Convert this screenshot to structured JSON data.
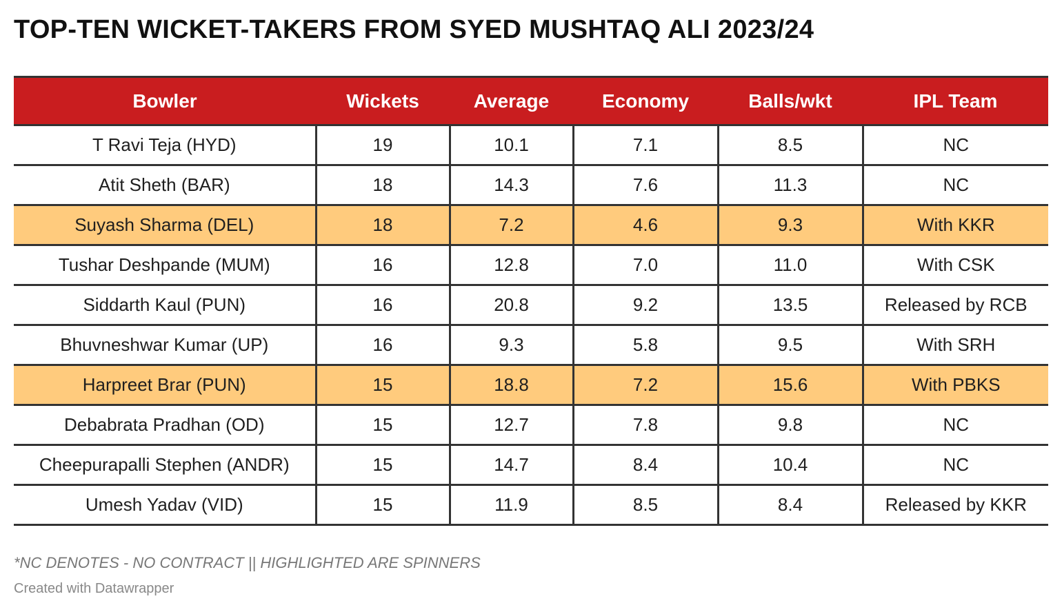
{
  "title": "TOP-TEN WICKET-TAKERS FROM SYED MUSHTAQ ALI 2023/24",
  "chart_data": {
    "type": "table",
    "title": "TOP-TEN WICKET-TAKERS FROM SYED MUSHTAQ ALI 2023/24",
    "columns": [
      "Bowler",
      "Wickets",
      "Average",
      "Economy",
      "Balls/wkt",
      "IPL Team"
    ],
    "rows": [
      {
        "bowler": "T Ravi Teja (HYD)",
        "wickets": "19",
        "average": "10.1",
        "economy": "7.1",
        "balls_per_wkt": "8.5",
        "ipl_team": "NC",
        "highlighted": false
      },
      {
        "bowler": "Atit Sheth (BAR)",
        "wickets": "18",
        "average": "14.3",
        "economy": "7.6",
        "balls_per_wkt": "11.3",
        "ipl_team": "NC",
        "highlighted": false
      },
      {
        "bowler": "Suyash Sharma (DEL)",
        "wickets": "18",
        "average": "7.2",
        "economy": "4.6",
        "balls_per_wkt": "9.3",
        "ipl_team": "With KKR",
        "highlighted": true
      },
      {
        "bowler": "Tushar Deshpande (MUM)",
        "wickets": "16",
        "average": "12.8",
        "economy": "7.0",
        "balls_per_wkt": "11.0",
        "ipl_team": "With CSK",
        "highlighted": false
      },
      {
        "bowler": "Siddarth Kaul (PUN)",
        "wickets": "16",
        "average": "20.8",
        "economy": "9.2",
        "balls_per_wkt": "13.5",
        "ipl_team": "Released by RCB",
        "highlighted": false
      },
      {
        "bowler": "Bhuvneshwar Kumar (UP)",
        "wickets": "16",
        "average": "9.3",
        "economy": "5.8",
        "balls_per_wkt": "9.5",
        "ipl_team": "With SRH",
        "highlighted": false
      },
      {
        "bowler": "Harpreet Brar (PUN)",
        "wickets": "15",
        "average": "18.8",
        "economy": "7.2",
        "balls_per_wkt": "15.6",
        "ipl_team": "With PBKS",
        "highlighted": true
      },
      {
        "bowler": "Debabrata Pradhan (OD)",
        "wickets": "15",
        "average": "12.7",
        "economy": "7.8",
        "balls_per_wkt": "9.8",
        "ipl_team": "NC",
        "highlighted": false
      },
      {
        "bowler": "Cheepurapalli Stephen (ANDR)",
        "wickets": "15",
        "average": "14.7",
        "economy": "8.4",
        "balls_per_wkt": "10.4",
        "ipl_team": "NC",
        "highlighted": false
      },
      {
        "bowler": "Umesh Yadav (VID)",
        "wickets": "15",
        "average": "11.9",
        "economy": "8.5",
        "balls_per_wkt": "8.4",
        "ipl_team": "Released by KKR",
        "highlighted": false
      }
    ],
    "colors": {
      "header_background": "#c91d1f",
      "header_text": "#ffffff",
      "highlight_background": "#ffcb7d",
      "rule_color": "#333333"
    }
  },
  "footnote": "*NC DENOTES - NO CONTRACT || HIGHLIGHTED ARE SPINNERS",
  "credit": "Created with Datawrapper"
}
